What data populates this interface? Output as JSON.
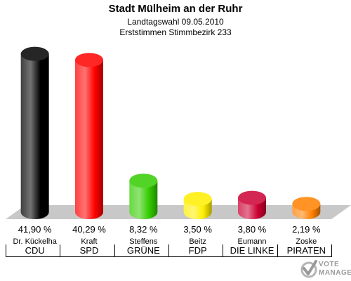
{
  "header": {
    "title": "Stadt Mülheim an der Ruhr",
    "subtitle1": "Landtagswahl 09.05.2010",
    "subtitle2": "Erststimmen Stimmbezirk 233"
  },
  "chart_data": {
    "type": "bar",
    "title": "Stadt Mülheim an der Ruhr",
    "subtitle": "Landtagswahl 09.05.2010 · Erststimmen Stimmbezirk 233",
    "categories": [
      "CDU",
      "SPD",
      "GRÜNE",
      "FDP",
      "DIE LINKE",
      "PIRATEN"
    ],
    "candidates": [
      "Dr. Kückelha",
      "Kraft",
      "Steffens",
      "Beitz",
      "Eumann",
      "Zoske"
    ],
    "values": [
      41.9,
      40.29,
      8.32,
      3.5,
      3.8,
      2.19
    ],
    "value_labels": [
      "41,90 %",
      "40,29 %",
      "8,32 %",
      "3,50 %",
      "3,80 %",
      "2,19 %"
    ],
    "colors": [
      "#000000",
      "#ff0000",
      "#33cc00",
      "#ffee00",
      "#cc0033",
      "#ff8000"
    ],
    "unit": "%",
    "ylim": [
      0,
      45
    ],
    "grid": false,
    "legend": "none"
  },
  "watermark": {
    "line1": "VOTE",
    "line2": "MANAGER"
  }
}
